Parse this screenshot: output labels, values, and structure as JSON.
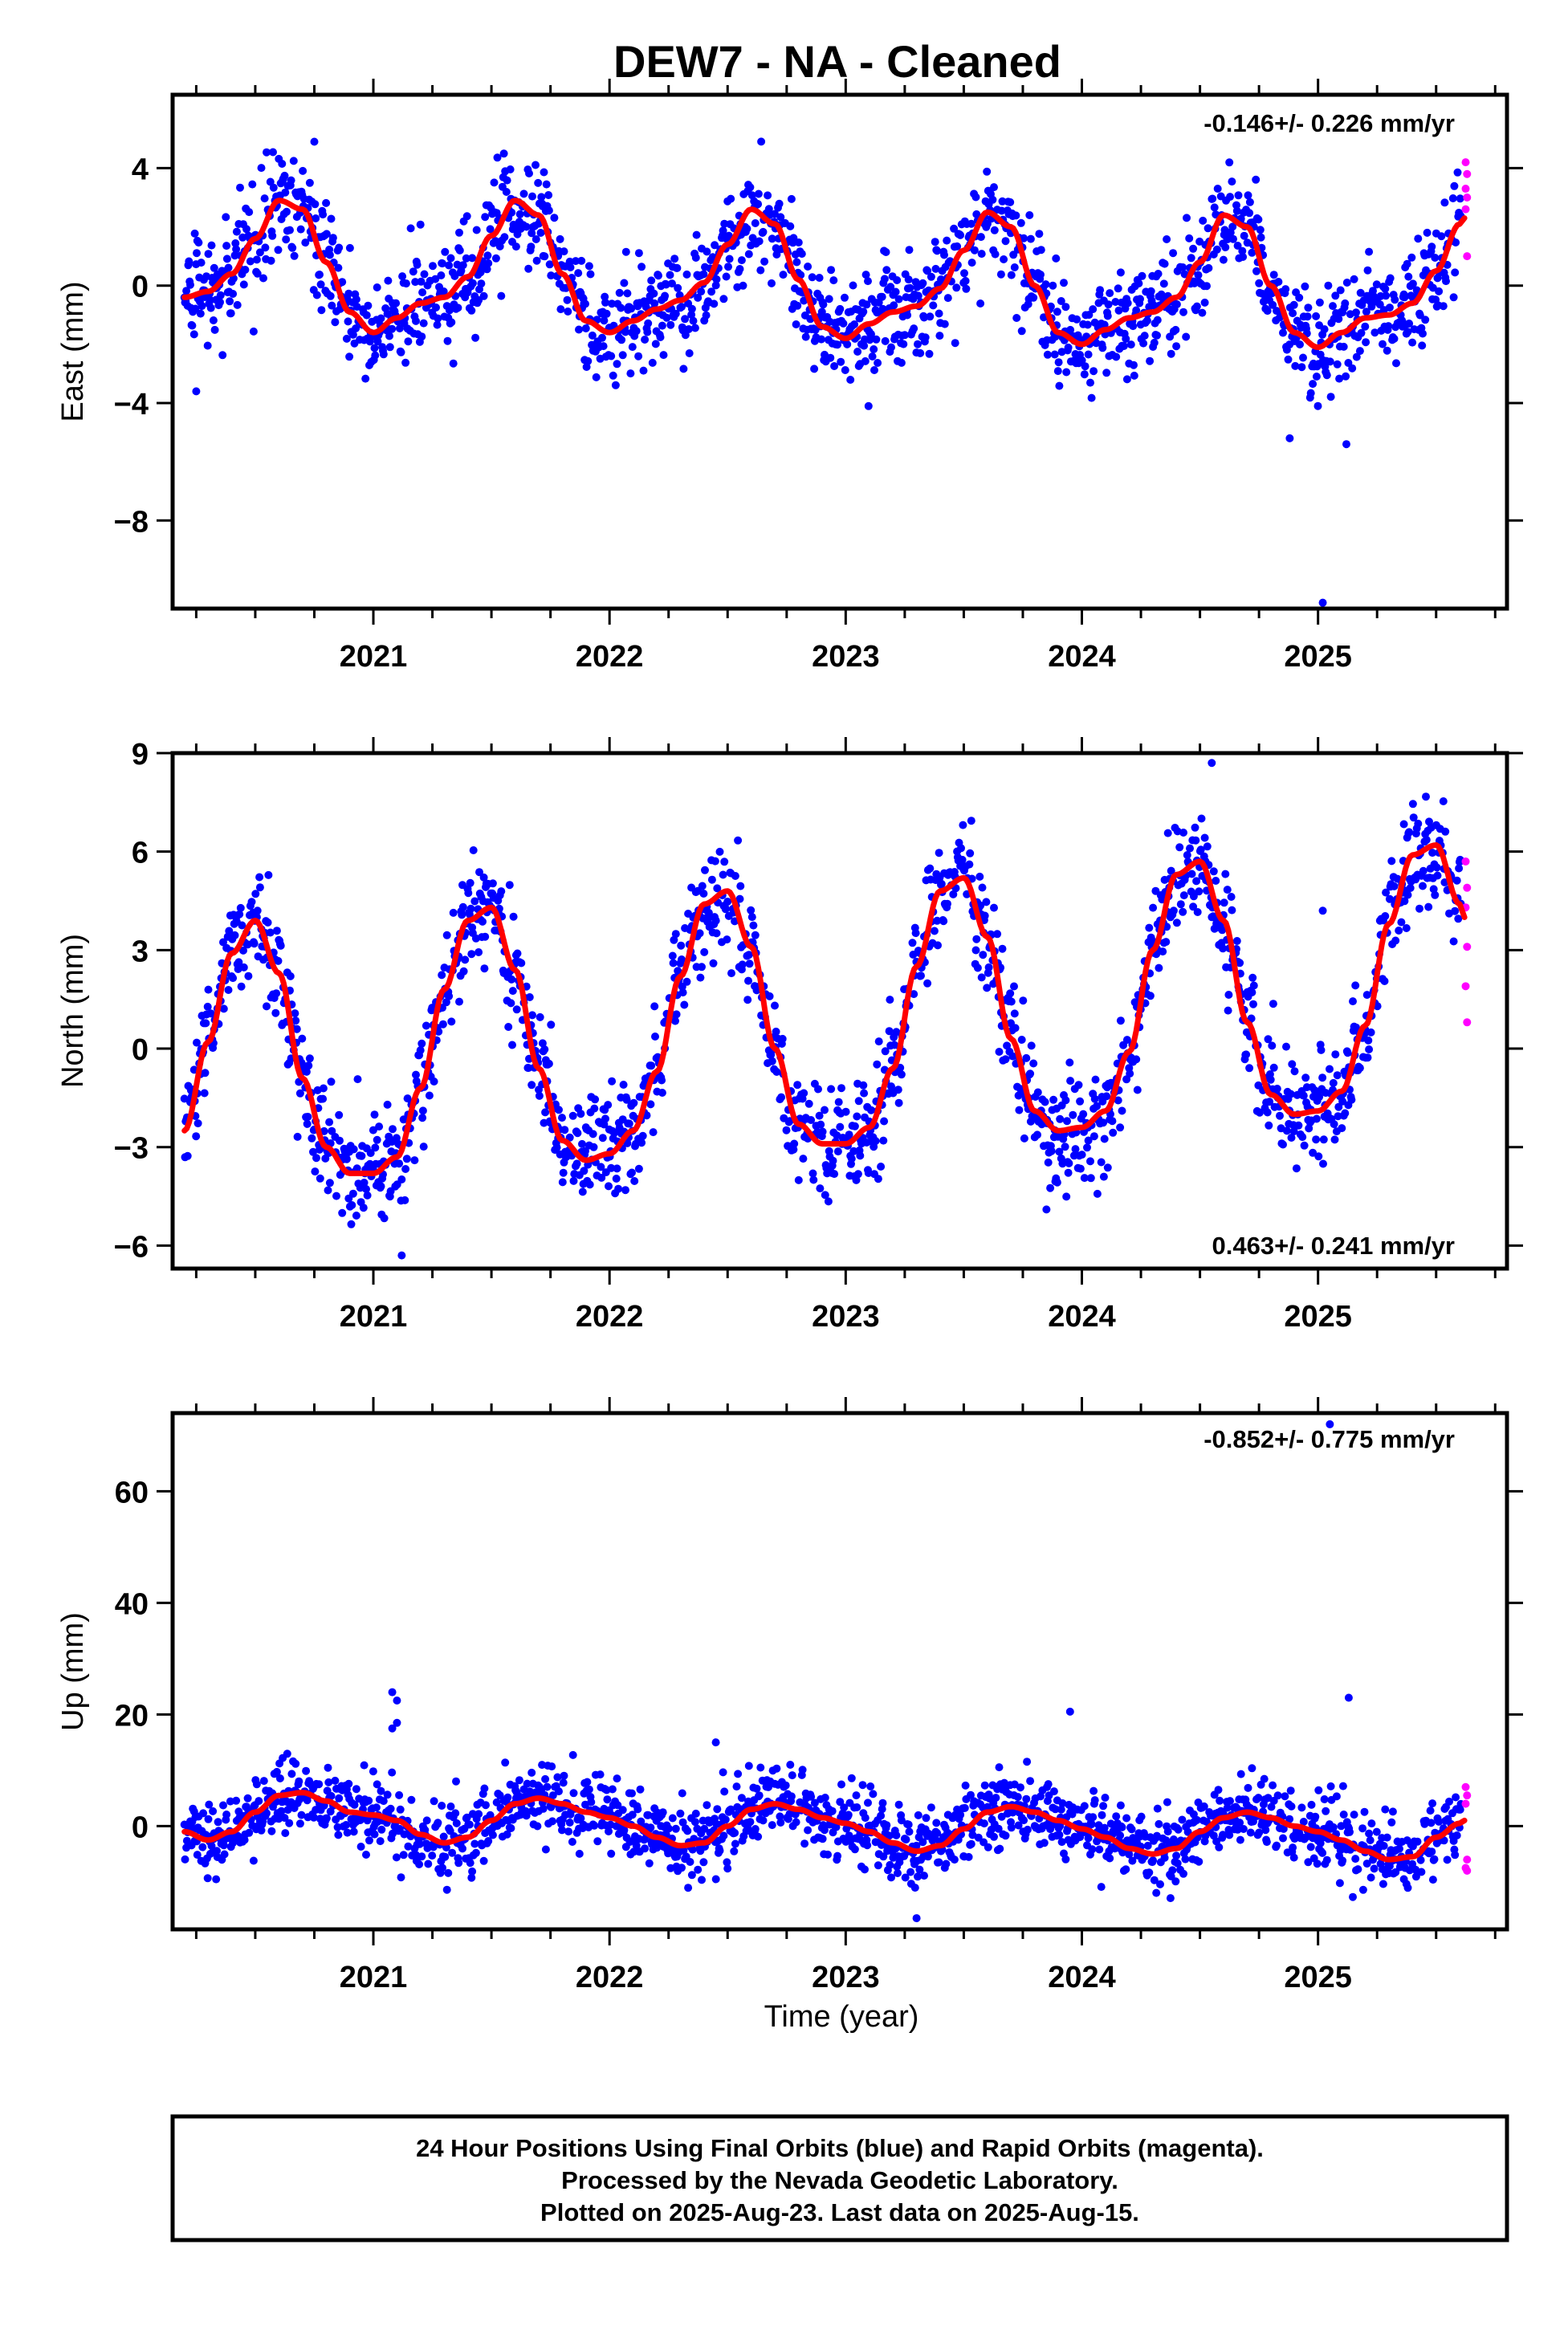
{
  "title": "DEW7  - NA - Cleaned",
  "colors": {
    "final": "#0000ff",
    "rapid": "#ff00ff",
    "model": "#ff0000",
    "frame": "#000000"
  },
  "chart_data": [
    {
      "type": "scatter",
      "panel": "east",
      "ylabel": "East (mm)",
      "xlabel": "",
      "xlim": [
        2020.15,
        2025.8
      ],
      "ylim": [
        -11.0,
        6.5
      ],
      "yticks": [
        "4",
        "0",
        "−4",
        "−8"
      ],
      "ytick_values": [
        4,
        0,
        -4,
        -8
      ],
      "xticks": [
        "2021",
        "2022",
        "2023",
        "2024",
        "2025"
      ],
      "xtick_values": [
        2021,
        2022,
        2023,
        2024,
        2025
      ],
      "rate": "-0.146+/- 0.226 mm/yr",
      "rate_pos": "top-right",
      "model": {
        "x": [
          2020.2,
          2020.3,
          2020.4,
          2020.5,
          2020.6,
          2020.7,
          2020.8,
          2020.9,
          2021.0,
          2021.1,
          2021.2,
          2021.3,
          2021.4,
          2021.5,
          2021.6,
          2021.7,
          2021.8,
          2021.9,
          2022.0,
          2022.1,
          2022.2,
          2022.3,
          2022.4,
          2022.5,
          2022.6,
          2022.7,
          2022.8,
          2022.9,
          2023.0,
          2023.1,
          2023.2,
          2023.3,
          2023.4,
          2023.5,
          2023.6,
          2023.7,
          2023.8,
          2023.9,
          2024.0,
          2024.1,
          2024.2,
          2024.3,
          2024.4,
          2024.5,
          2024.6,
          2024.7,
          2024.8,
          2024.9,
          2025.0,
          2025.1,
          2025.2,
          2025.3,
          2025.4,
          2025.5,
          2025.6,
          2025.62
        ],
        "y": [
          -0.4,
          -0.2,
          0.4,
          1.6,
          2.9,
          2.6,
          0.8,
          -0.9,
          -1.6,
          -1.1,
          -0.6,
          -0.4,
          0.3,
          1.7,
          2.9,
          2.4,
          0.4,
          -1.2,
          -1.6,
          -1.2,
          -0.8,
          -0.5,
          0.1,
          1.4,
          2.6,
          2.1,
          0.2,
          -1.4,
          -1.8,
          -1.3,
          -0.9,
          -0.7,
          -0.1,
          1.2,
          2.5,
          2.0,
          0.0,
          -1.6,
          -2.0,
          -1.5,
          -1.1,
          -0.9,
          -0.4,
          0.8,
          2.4,
          2.0,
          0.0,
          -1.6,
          -2.1,
          -1.6,
          -1.1,
          -1.0,
          -0.6,
          0.5,
          2.1,
          2.3
        ]
      },
      "noise": 0.9,
      "rapid": [
        4.2,
        3.8,
        3.3,
        3.0,
        2.6,
        1.0
      ],
      "outliers": [
        [
          2025.02,
          -10.8
        ],
        [
          2024.88,
          -5.2
        ],
        [
          2025.12,
          -5.4
        ],
        [
          2020.25,
          -3.6
        ],
        [
          2020.75,
          4.9
        ]
      ]
    },
    {
      "type": "scatter",
      "panel": "north",
      "ylabel": "North (mm)",
      "xlabel": "",
      "xlim": [
        2020.15,
        2025.8
      ],
      "ylim": [
        -6.7,
        9.0
      ],
      "yticks": [
        "9",
        "6",
        "3",
        "0",
        "−3",
        "−6"
      ],
      "ytick_values": [
        9,
        6,
        3,
        0,
        -3,
        -6
      ],
      "xticks": [
        "2021",
        "2022",
        "2023",
        "2024",
        "2025"
      ],
      "xtick_values": [
        2021,
        2022,
        2023,
        2024,
        2025
      ],
      "rate": "0.463+/- 0.241 mm/yr",
      "rate_pos": "bottom-right",
      "model": {
        "x": [
          2020.2,
          2020.3,
          2020.4,
          2020.5,
          2020.6,
          2020.7,
          2020.8,
          2020.9,
          2021.0,
          2021.1,
          2021.2,
          2021.3,
          2021.4,
          2021.5,
          2021.6,
          2021.7,
          2021.8,
          2021.9,
          2022.0,
          2022.1,
          2022.2,
          2022.3,
          2022.4,
          2022.5,
          2022.6,
          2022.7,
          2022.8,
          2022.9,
          2023.0,
          2023.1,
          2023.2,
          2023.3,
          2023.4,
          2023.5,
          2023.6,
          2023.7,
          2023.8,
          2023.9,
          2024.0,
          2024.1,
          2024.2,
          2024.3,
          2024.4,
          2024.5,
          2024.6,
          2024.7,
          2024.8,
          2024.9,
          2025.0,
          2025.1,
          2025.2,
          2025.3,
          2025.4,
          2025.5,
          2025.6,
          2025.62
        ],
        "y": [
          -2.5,
          0.2,
          2.9,
          3.9,
          2.3,
          -0.9,
          -3.0,
          -3.8,
          -3.8,
          -3.3,
          -1.2,
          1.8,
          3.9,
          4.3,
          2.4,
          -0.6,
          -2.8,
          -3.4,
          -3.2,
          -2.5,
          -0.7,
          2.2,
          4.4,
          4.8,
          3.1,
          0.0,
          -2.3,
          -2.9,
          -2.9,
          -2.4,
          -0.6,
          2.5,
          4.8,
          5.2,
          3.4,
          0.3,
          -1.9,
          -2.5,
          -2.4,
          -1.9,
          -0.1,
          3.0,
          5.3,
          5.7,
          3.9,
          0.8,
          -1.4,
          -2.0,
          -1.9,
          -1.3,
          0.7,
          3.8,
          5.9,
          6.2,
          4.4,
          4.0
        ]
      },
      "noise": 0.85,
      "rapid": [
        5.7,
        4.9,
        4.3,
        3.1,
        1.9,
        0.8
      ],
      "outliers": [
        [
          2025.02,
          4.2
        ],
        [
          2024.55,
          8.7
        ],
        [
          2023.85,
          -4.9
        ],
        [
          2021.12,
          -6.3
        ]
      ]
    },
    {
      "type": "scatter",
      "panel": "up",
      "ylabel": "Up (mm)",
      "xlabel": "Time (year)",
      "xlim": [
        2020.15,
        2025.8
      ],
      "ylim": [
        -18.5,
        74.0
      ],
      "yticks": [
        "60",
        "40",
        "20",
        "0"
      ],
      "ytick_values": [
        60,
        40,
        20,
        0
      ],
      "xticks": [
        "2021",
        "2022",
        "2023",
        "2024",
        "2025"
      ],
      "xtick_values": [
        2021,
        2022,
        2023,
        2024,
        2025
      ],
      "rate": "-0.852+/- 0.775 mm/yr",
      "rate_pos": "top-right",
      "model": {
        "x": [
          2020.2,
          2020.3,
          2020.4,
          2020.5,
          2020.6,
          2020.7,
          2020.8,
          2020.9,
          2021.0,
          2021.1,
          2021.2,
          2021.3,
          2021.4,
          2021.5,
          2021.6,
          2021.7,
          2021.8,
          2021.9,
          2022.0,
          2022.1,
          2022.2,
          2022.3,
          2022.4,
          2022.5,
          2022.6,
          2022.7,
          2022.8,
          2022.9,
          2023.0,
          2023.1,
          2023.2,
          2023.3,
          2023.4,
          2023.5,
          2023.6,
          2023.7,
          2023.8,
          2023.9,
          2024.0,
          2024.1,
          2024.2,
          2024.3,
          2024.4,
          2024.5,
          2024.6,
          2024.7,
          2024.8,
          2024.9,
          2025.0,
          2025.1,
          2025.2,
          2025.3,
          2025.4,
          2025.5,
          2025.6,
          2025.62
        ],
        "y": [
          -1.0,
          -2.5,
          -1.0,
          2.5,
          5.5,
          6.0,
          4.5,
          2.5,
          2.0,
          1.0,
          -1.5,
          -3.0,
          -2.0,
          1.0,
          4.0,
          5.0,
          4.0,
          2.5,
          1.5,
          0.0,
          -2.0,
          -3.5,
          -3.0,
          0.0,
          3.0,
          4.0,
          3.0,
          1.5,
          0.5,
          -1.0,
          -3.0,
          -4.5,
          -3.5,
          -0.5,
          2.5,
          3.5,
          2.5,
          1.0,
          -0.5,
          -2.0,
          -4.0,
          -5.0,
          -4.0,
          -1.0,
          1.5,
          2.5,
          1.5,
          0.0,
          -1.0,
          -2.5,
          -4.5,
          -6.0,
          -5.5,
          -2.0,
          0.5,
          1.0
        ]
      },
      "noise": 3.3,
      "rapid": [
        7.0,
        5.5,
        4.0,
        -6.0,
        -7.5,
        -8.0
      ],
      "outliers": [
        [
          2025.05,
          72.0
        ],
        [
          2021.08,
          24.0
        ],
        [
          2021.1,
          22.5
        ],
        [
          2021.08,
          17.5
        ],
        [
          2021.1,
          18.5
        ],
        [
          2025.13,
          23.0
        ],
        [
          2023.95,
          20.5
        ],
        [
          2023.3,
          -16.5
        ],
        [
          2022.45,
          15.0
        ]
      ]
    }
  ],
  "footer": {
    "line1": "24 Hour Positions Using Final Orbits (blue) and Rapid Orbits (magenta).",
    "line2": "Processed by the Nevada Geodetic Laboratory.",
    "line3": "Plotted on 2025-Aug-23. Last data on 2025-Aug-15."
  }
}
